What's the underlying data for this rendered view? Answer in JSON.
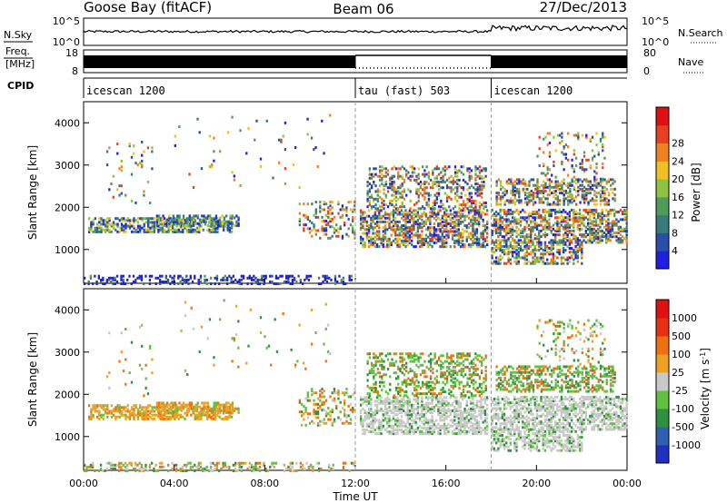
{
  "header": {
    "station": "Goose Bay (fitACF)",
    "beam": "Beam 06",
    "date": "27/Dec/2013"
  },
  "top_panels": {
    "nsky_label": "N.Sky",
    "nsky_ticks": [
      "10^5",
      "10^0"
    ],
    "nsearch_label": "N.Search",
    "nsearch_ticks": [
      "10^5",
      "10^0"
    ],
    "freq_label": "Freq.",
    "freq_unit": "[MHz]",
    "freq_ticks": [
      "18",
      "8"
    ],
    "nave_label": "Nave",
    "nave_ticks": [
      "80",
      "0"
    ],
    "cpid_label": "CPID"
  },
  "cpid_segments": [
    {
      "label": "icescan 1200",
      "start_h": 0,
      "end_h": 12
    },
    {
      "label": "tau (fast) 503",
      "start_h": 12,
      "end_h": 18
    },
    {
      "label": "icescan 1200",
      "start_h": 18,
      "end_h": 24
    }
  ],
  "chart_data": [
    {
      "type": "heatmap",
      "name": "power-panel",
      "ylabel": "Slant Range [km]",
      "y_ticks": [
        "1000",
        "2000",
        "3000",
        "4000"
      ],
      "ylim": [
        200,
        4500
      ],
      "xlim": [
        0,
        24
      ],
      "colorbar_label": "Power [dB]",
      "colorbar_ticks": [
        "4",
        "8",
        "12",
        "16",
        "20",
        "24",
        "28"
      ],
      "colorbar_colors": [
        "#1f1fe0",
        "#2a4fa8",
        "#3a7a7a",
        "#4f9b5a",
        "#8fc240",
        "#f0c020",
        "#f08020",
        "#e84020",
        "#e01010"
      ]
    },
    {
      "type": "heatmap",
      "name": "velocity-panel",
      "ylabel": "Slant Range [km]",
      "y_ticks": [
        "1000",
        "2000",
        "3000",
        "4000"
      ],
      "ylim": [
        200,
        4500
      ],
      "xlim": [
        0,
        24
      ],
      "xlabel": "Time UT",
      "x_ticks": [
        "00:00",
        "04:00",
        "08:00",
        "12:00",
        "16:00",
        "20:00",
        "00:00"
      ],
      "colorbar_label": "Velocity [m s",
      "colorbar_label_sup": "-1",
      "colorbar_label_end": "]",
      "colorbar_ticks": [
        "1000",
        "500",
        "100",
        "25",
        "-25",
        "-100",
        "-500",
        "-1000"
      ],
      "colorbar_colors": [
        "#2030c0",
        "#3060b0",
        "#309040",
        "#60c040",
        "#c8c8c8",
        "#f0a020",
        "#f07010",
        "#e83010",
        "#e01010"
      ]
    }
  ]
}
